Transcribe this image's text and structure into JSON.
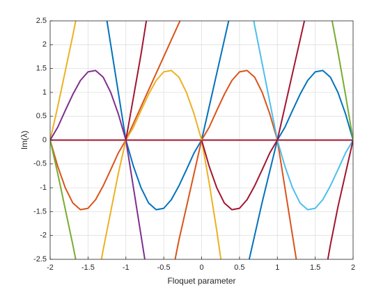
{
  "chart_data": {
    "type": "line",
    "xlabel": "Floquet parameter",
    "ylabel": "Im(λ)",
    "x": [
      -2,
      -1.9,
      -1.8,
      -1.7,
      -1.6,
      -1.5,
      -1.4,
      -1.3,
      -1.2,
      -1.1,
      -1,
      -0.9,
      -0.8,
      -0.7,
      -0.6,
      -0.5,
      -0.4,
      -0.3,
      -0.2,
      -0.1,
      0,
      0.1,
      0.2,
      0.3,
      0.4,
      0.5,
      0.6,
      0.7,
      0.8,
      0.9,
      1,
      1.1,
      1.2,
      1.3,
      1.4,
      1.5,
      1.6,
      1.7,
      1.8,
      1.9,
      2
    ],
    "xlim": [
      -2,
      2
    ],
    "ylim": [
      -2.5,
      2.5
    ],
    "xticks": [
      -2,
      -1.5,
      -1,
      -0.5,
      0,
      0.5,
      1,
      1.5,
      2
    ],
    "yticks": [
      -2.5,
      -2,
      -1.5,
      -1,
      -0.5,
      0,
      0.5,
      1,
      1.5,
      2,
      2.5
    ],
    "grid": true,
    "series": [
      {
        "color": "#A2142F",
        "values": [
          0,
          0,
          0,
          0,
          0,
          0,
          0,
          0,
          0,
          0,
          0,
          0,
          0,
          0,
          0,
          0,
          0,
          0,
          0,
          0,
          0,
          0,
          0,
          0,
          0,
          0,
          0,
          0,
          0,
          0,
          0,
          0,
          0,
          0,
          0,
          0,
          0,
          0,
          0,
          0,
          0
        ]
      },
      {
        "color": "#0072BD",
        "values": [
          null,
          null,
          null,
          null,
          null,
          null,
          null,
          3.0,
          2.0,
          1.0,
          0,
          -0.55,
          -1.0,
          -1.32,
          -1.46,
          -1.43,
          -1.25,
          -0.96,
          -0.62,
          -0.27,
          0,
          0.7,
          1.4,
          2.1,
          2.8,
          null,
          null,
          null,
          null,
          null,
          null,
          null,
          null,
          null,
          null,
          null,
          null,
          null,
          null,
          null,
          null
        ]
      },
      {
        "color": "#0072BD",
        "values": [
          null,
          null,
          null,
          null,
          null,
          null,
          null,
          null,
          null,
          null,
          null,
          null,
          null,
          null,
          null,
          null,
          null,
          null,
          null,
          null,
          null,
          null,
          null,
          null,
          null,
          null,
          -2.7,
          -2.0,
          -1.3,
          -0.65,
          0,
          0.27,
          0.62,
          0.96,
          1.25,
          1.43,
          1.46,
          1.32,
          1.0,
          0.55,
          0
        ]
      },
      {
        "color": "#D95319",
        "values": [
          0,
          -0.55,
          -1.0,
          -1.32,
          -1.46,
          -1.43,
          -1.25,
          -0.96,
          -0.62,
          -0.27,
          0,
          0.35,
          0.7,
          1.05,
          1.4,
          1.75,
          2.1,
          2.45,
          2.8,
          null,
          null,
          null,
          null,
          null,
          null,
          null,
          null,
          null,
          null,
          null,
          null,
          null,
          null,
          null,
          null,
          null,
          null,
          null,
          null,
          null,
          null
        ]
      },
      {
        "color": "#D95319",
        "values": [
          null,
          null,
          null,
          null,
          null,
          null,
          null,
          null,
          null,
          null,
          null,
          null,
          null,
          null,
          null,
          null,
          -2.9,
          -2.1,
          -1.4,
          -0.7,
          0,
          0.27,
          0.62,
          0.96,
          1.25,
          1.43,
          1.46,
          1.32,
          1.0,
          0.55,
          0,
          -1.0,
          -2.0,
          -3.0,
          null,
          null,
          null,
          null,
          null,
          null,
          null
        ]
      },
      {
        "color": "#EDB120",
        "values": [
          0,
          0.7,
          1.45,
          2.2,
          3.0,
          null,
          null,
          null,
          null,
          null,
          null,
          null,
          null,
          null,
          null,
          null,
          null,
          null,
          null,
          null,
          null,
          null,
          null,
          null,
          null,
          null,
          null,
          null,
          null,
          null,
          null,
          null,
          null,
          null,
          null,
          null,
          null,
          null,
          null,
          null,
          null
        ]
      },
      {
        "color": "#EDB120",
        "values": [
          null,
          null,
          null,
          null,
          null,
          null,
          -3.2,
          -2.3,
          -1.5,
          -0.7,
          0,
          0.27,
          0.62,
          0.96,
          1.25,
          1.43,
          1.46,
          1.32,
          1.0,
          0.55,
          0,
          -0.9,
          -1.9,
          -3.0,
          null,
          null,
          null,
          null,
          null,
          null,
          null,
          null,
          null,
          null,
          null,
          null,
          null,
          null,
          null,
          null,
          null
        ]
      },
      {
        "color": "#7E2F8E",
        "values": [
          0,
          0.27,
          0.62,
          0.96,
          1.25,
          1.43,
          1.46,
          1.32,
          1.0,
          0.55,
          0,
          -1.0,
          -2.0,
          -3.0,
          null,
          null,
          null,
          null,
          null,
          null,
          null,
          null,
          null,
          null,
          null,
          null,
          null,
          null,
          null,
          null,
          null,
          null,
          null,
          null,
          null,
          null,
          null,
          null,
          null,
          null,
          null
        ]
      },
      {
        "color": "#77AC30",
        "values": [
          0,
          -0.7,
          -1.45,
          -2.2,
          -3.0,
          null,
          null,
          null,
          null,
          null,
          null,
          null,
          null,
          null,
          null,
          null,
          null,
          null,
          null,
          null,
          null,
          null,
          null,
          null,
          null,
          null,
          null,
          null,
          null,
          null,
          null,
          null,
          null,
          null,
          null,
          null,
          null,
          null,
          null,
          null,
          null
        ]
      },
      {
        "color": "#77AC30",
        "values": [
          null,
          null,
          null,
          null,
          null,
          null,
          null,
          null,
          null,
          null,
          null,
          null,
          null,
          null,
          null,
          null,
          null,
          null,
          null,
          null,
          null,
          null,
          null,
          null,
          null,
          null,
          null,
          null,
          null,
          null,
          null,
          null,
          null,
          null,
          null,
          null,
          null,
          2.7,
          1.85,
          0.95,
          0
        ]
      },
      {
        "color": "#4DBEEE",
        "values": [
          null,
          null,
          null,
          null,
          null,
          null,
          null,
          null,
          null,
          null,
          null,
          null,
          null,
          null,
          null,
          null,
          null,
          null,
          null,
          null,
          null,
          null,
          null,
          null,
          null,
          null,
          3.3,
          2.4,
          1.6,
          0.8,
          0,
          -0.55,
          -1.0,
          -1.32,
          -1.46,
          -1.43,
          -1.25,
          -0.96,
          -0.62,
          -0.27,
          0
        ]
      },
      {
        "color": "#A2142F",
        "values": [
          null,
          null,
          null,
          null,
          null,
          null,
          null,
          null,
          null,
          null,
          0,
          0.9,
          1.8,
          2.8,
          null,
          null,
          null,
          null,
          null,
          null,
          null,
          null,
          null,
          null,
          null,
          null,
          null,
          null,
          null,
          null,
          null,
          null,
          null,
          null,
          null,
          null,
          null,
          null,
          null,
          null,
          null
        ]
      },
      {
        "color": "#A2142F",
        "values": [
          null,
          null,
          null,
          null,
          null,
          null,
          null,
          null,
          null,
          null,
          null,
          null,
          null,
          null,
          null,
          null,
          null,
          null,
          null,
          null,
          0,
          -0.55,
          -1.0,
          -1.32,
          -1.46,
          -1.43,
          -1.25,
          -0.96,
          -0.62,
          -0.27,
          0,
          0.7,
          1.4,
          2.1,
          2.8,
          null,
          null,
          null,
          null,
          null,
          null
        ]
      },
      {
        "color": "#A2142F",
        "values": [
          null,
          null,
          null,
          null,
          null,
          null,
          null,
          null,
          null,
          null,
          null,
          null,
          null,
          null,
          null,
          null,
          null,
          null,
          null,
          null,
          null,
          null,
          null,
          null,
          null,
          null,
          null,
          null,
          null,
          null,
          null,
          null,
          null,
          null,
          null,
          null,
          -3.1,
          -2.2,
          -1.4,
          -0.7,
          0
        ]
      }
    ]
  }
}
